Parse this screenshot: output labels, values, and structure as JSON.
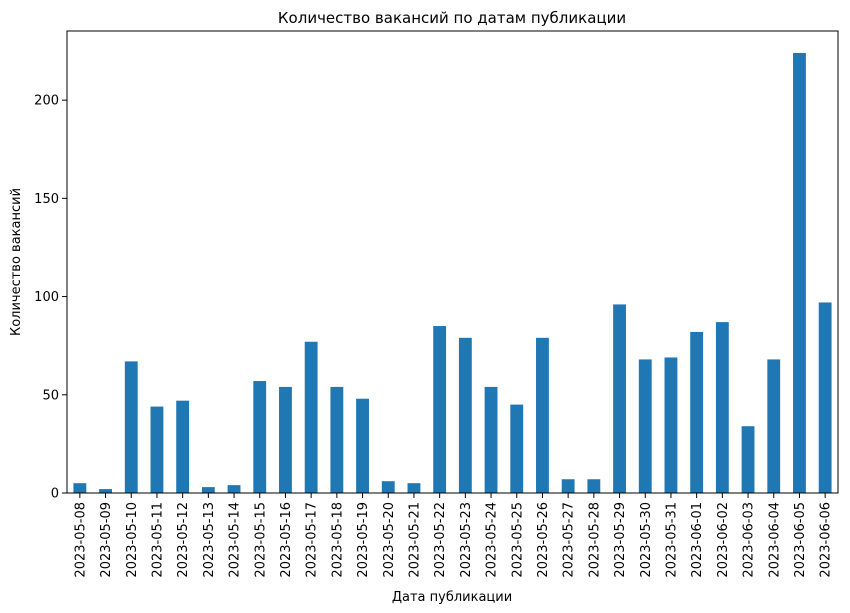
{
  "chart_data": {
    "type": "bar",
    "title": "Количество вакансий по датам публикации",
    "xlabel": "Дата публикации",
    "ylabel": "Количество вакансий",
    "categories": [
      "2023-05-08",
      "2023-05-09",
      "2023-05-10",
      "2023-05-11",
      "2023-05-12",
      "2023-05-13",
      "2023-05-14",
      "2023-05-15",
      "2023-05-16",
      "2023-05-17",
      "2023-05-18",
      "2023-05-19",
      "2023-05-20",
      "2023-05-21",
      "2023-05-22",
      "2023-05-23",
      "2023-05-24",
      "2023-05-25",
      "2023-05-26",
      "2023-05-27",
      "2023-05-28",
      "2023-05-29",
      "2023-05-30",
      "2023-05-31",
      "2023-06-01",
      "2023-06-02",
      "2023-06-03",
      "2023-06-04",
      "2023-06-05",
      "2023-06-06"
    ],
    "values": [
      5,
      2,
      67,
      44,
      47,
      3,
      4,
      57,
      54,
      77,
      54,
      48,
      6,
      5,
      85,
      79,
      54,
      45,
      79,
      7,
      7,
      96,
      68,
      69,
      82,
      87,
      34,
      68,
      224,
      97
    ],
    "ylim": [
      0,
      235.2
    ],
    "yticks": [
      0,
      50,
      100,
      150,
      200
    ],
    "bar_color": "#1f77b4",
    "grid": false,
    "legend": false
  }
}
